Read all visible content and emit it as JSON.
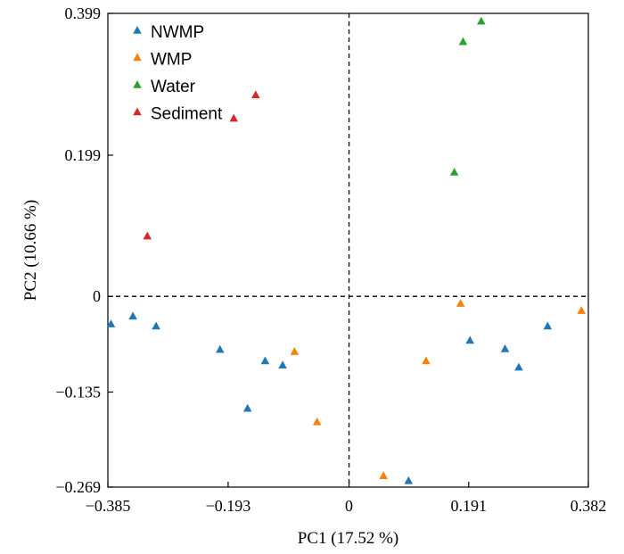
{
  "chart_data": {
    "type": "scatter",
    "xlabel": "PC1 (17.52 %)",
    "ylabel": "PC2 (10.66 %)",
    "xlim": [
      -0.385,
      0.382
    ],
    "ylim": [
      -0.269,
      0.399
    ],
    "xticks": [
      -0.385,
      -0.193,
      0,
      0.191,
      0.382
    ],
    "xtick_labels": [
      "−0.385",
      "−0.193",
      "0",
      "0.191",
      "0.382"
    ],
    "yticks": [
      0.399,
      0.199,
      0,
      -0.135,
      -0.269
    ],
    "ytick_labels": [
      "0.399",
      "0.199",
      "0",
      "−0.135",
      "−0.269"
    ],
    "reference_lines": {
      "x": 0,
      "y": 0,
      "style": "dashed"
    },
    "legend_position": "top-left",
    "marker": "triangle",
    "series": [
      {
        "name": "NWMP",
        "color": "#1f77b4",
        "points": [
          [
            -0.38,
            -0.039
          ],
          [
            -0.345,
            -0.028
          ],
          [
            -0.308,
            -0.042
          ],
          [
            -0.206,
            -0.075
          ],
          [
            -0.162,
            -0.158
          ],
          [
            -0.134,
            -0.091
          ],
          [
            -0.106,
            -0.097
          ],
          [
            0.095,
            -0.26
          ],
          [
            0.193,
            -0.062
          ],
          [
            0.249,
            -0.074
          ],
          [
            0.271,
            -0.1
          ],
          [
            0.317,
            -0.042
          ]
        ]
      },
      {
        "name": "WMP",
        "color": "#ff7f0e",
        "points": [
          [
            -0.087,
            -0.078
          ],
          [
            -0.051,
            -0.177
          ],
          [
            0.055,
            -0.253
          ],
          [
            0.123,
            -0.091
          ],
          [
            0.178,
            -0.01
          ],
          [
            0.371,
            -0.02
          ]
        ]
      },
      {
        "name": "Water",
        "color": "#2ca02c",
        "points": [
          [
            0.168,
            0.175
          ],
          [
            0.182,
            0.359
          ],
          [
            0.211,
            0.388
          ]
        ]
      },
      {
        "name": "Sediment",
        "color": "#d62728",
        "points": [
          [
            -0.322,
            0.085
          ],
          [
            -0.184,
            0.251
          ],
          [
            -0.149,
            0.284
          ]
        ]
      }
    ]
  }
}
